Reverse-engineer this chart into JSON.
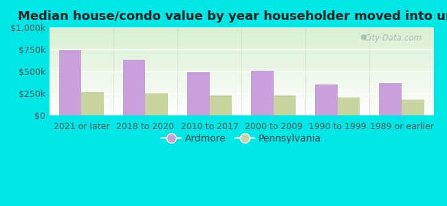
{
  "title": "Median house/condo value by year householder moved into unit",
  "categories": [
    "2021 or later",
    "2018 to 2020",
    "2010 to 2017",
    "2000 to 2009",
    "1990 to 1999",
    "1989 or earlier"
  ],
  "ardmore_values": [
    740000,
    635000,
    490000,
    505000,
    355000,
    365000
  ],
  "pennsylvania_values": [
    268000,
    248000,
    230000,
    228000,
    205000,
    180000
  ],
  "ardmore_color": "#c9a0dc",
  "pennsylvania_color": "#c8d4a0",
  "background_color": "#00e5e5",
  "ylim": [
    0,
    1000000
  ],
  "yticks": [
    0,
    250000,
    500000,
    750000,
    1000000
  ],
  "ytick_labels": [
    "$0",
    "$250k",
    "$500k",
    "$750k",
    "$1,000k"
  ],
  "bar_width": 0.35,
  "watermark": "City-Data.com",
  "legend_labels": [
    "Ardmore",
    "Pennsylvania"
  ],
  "title_fontsize": 13,
  "tick_fontsize": 9,
  "legend_fontsize": 10
}
